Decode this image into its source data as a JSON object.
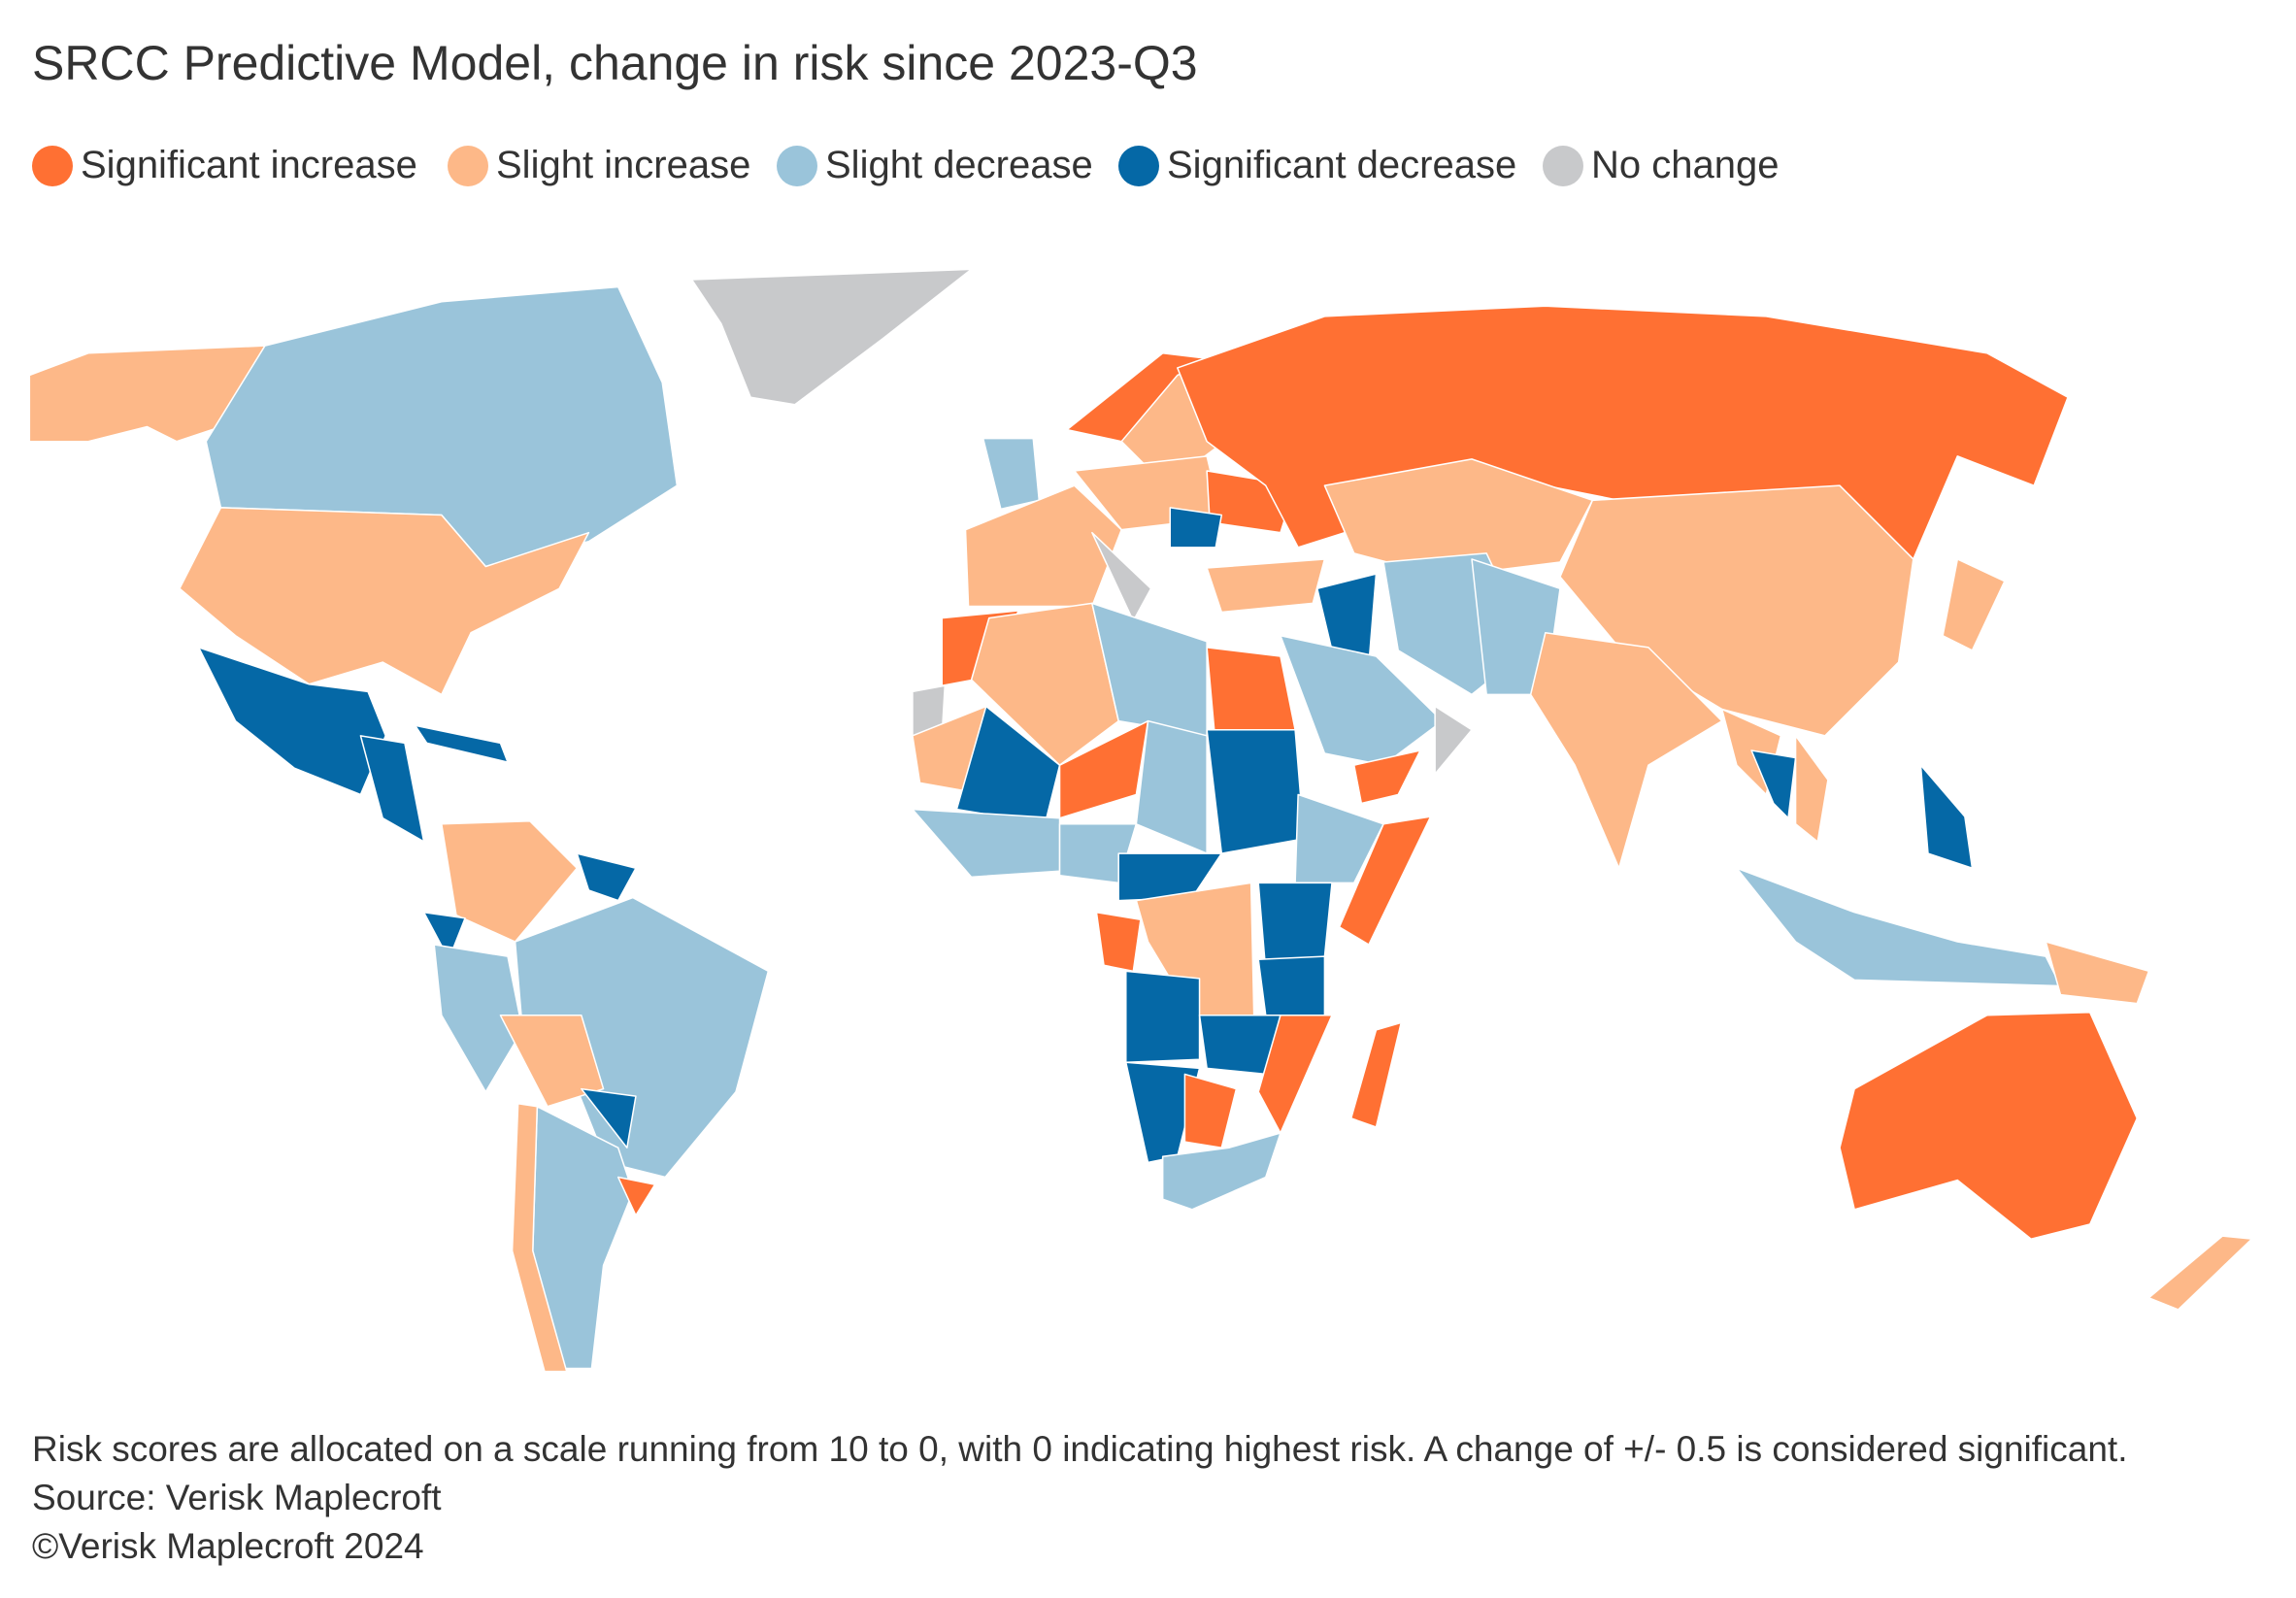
{
  "title": "SRCC Predictive Model, change in risk since 2023-Q3",
  "legend": [
    {
      "key": "sig_inc",
      "label": "Significant increase",
      "color": "#ff7033"
    },
    {
      "key": "sli_inc",
      "label": "Slight increase",
      "color": "#fdb888"
    },
    {
      "key": "sli_dec",
      "label": "Slight decrease",
      "color": "#9ac4da"
    },
    {
      "key": "sig_dec",
      "label": "Significant decrease",
      "color": "#0568a6"
    },
    {
      "key": "none",
      "label": "No change",
      "color": "#c8c9cb"
    }
  ],
  "regions": {
    "alaska": "sli_inc",
    "canada": "sli_dec",
    "greenland": "none",
    "usa": "sli_inc",
    "mexico": "sig_dec",
    "central_america": "sig_dec",
    "caribbean": "sig_dec",
    "colombia_venezuela": "sli_inc",
    "guianas": "sig_dec",
    "ecuador": "sig_dec",
    "peru": "sli_dec",
    "brazil": "sli_dec",
    "bolivia": "sli_inc",
    "paraguay": "sig_dec",
    "argentina": "sli_dec",
    "chile": "sli_inc",
    "uruguay": "sig_inc",
    "norway": "sig_inc",
    "sweden_finland": "sli_inc",
    "uk": "sli_dec",
    "france_spain": "sli_inc",
    "italy": "none",
    "central_europe": "sli_inc",
    "ukraine": "sig_inc",
    "romania": "sig_dec",
    "turkey": "sli_inc",
    "russia": "sig_inc",
    "central_asia": "sli_inc",
    "china": "sli_inc",
    "japan": "sli_inc",
    "iran": "sli_dec",
    "iraq": "sig_dec",
    "saudi_arabia": "sli_dec",
    "yemen": "sig_inc",
    "oman": "none",
    "pakistan_afghanistan": "sli_dec",
    "india": "sli_inc",
    "myanmar": "sli_inc",
    "thailand": "sig_dec",
    "vietnam": "sli_inc",
    "philippines": "sig_dec",
    "indonesia": "sli_dec",
    "new_guinea": "sli_inc",
    "australia": "sig_inc",
    "new_zealand": "sli_inc",
    "morocco": "sig_inc",
    "algeria": "sli_inc",
    "libya": "sli_dec",
    "egypt": "sig_inc",
    "western_sahara": "none",
    "mauritania": "sli_inc",
    "mali": "sig_dec",
    "niger": "sig_inc",
    "chad": "sli_dec",
    "sudan": "sig_dec",
    "ethiopia": "sli_dec",
    "somalia": "sig_inc",
    "west_africa": "sli_dec",
    "nigeria": "sli_dec",
    "cameroon_car": "sig_dec",
    "drc": "sli_inc",
    "gabon": "sig_inc",
    "kenya_uganda": "sig_dec",
    "tanzania": "sig_dec",
    "angola": "sig_dec",
    "zambia_zimbabwe": "sig_dec",
    "mozambique": "sig_inc",
    "namibia": "sig_dec",
    "botswana": "sig_inc",
    "south_africa": "sli_dec",
    "madagascar": "sig_inc"
  },
  "footer": {
    "note": "Risk scores are allocated on a scale running from 10 to 0, with 0 indicating highest risk. A change of +/- 0.5 is considered significant.",
    "source": "Source: Verisk Maplecroft",
    "copyright": "©Verisk Maplecroft 2024"
  }
}
